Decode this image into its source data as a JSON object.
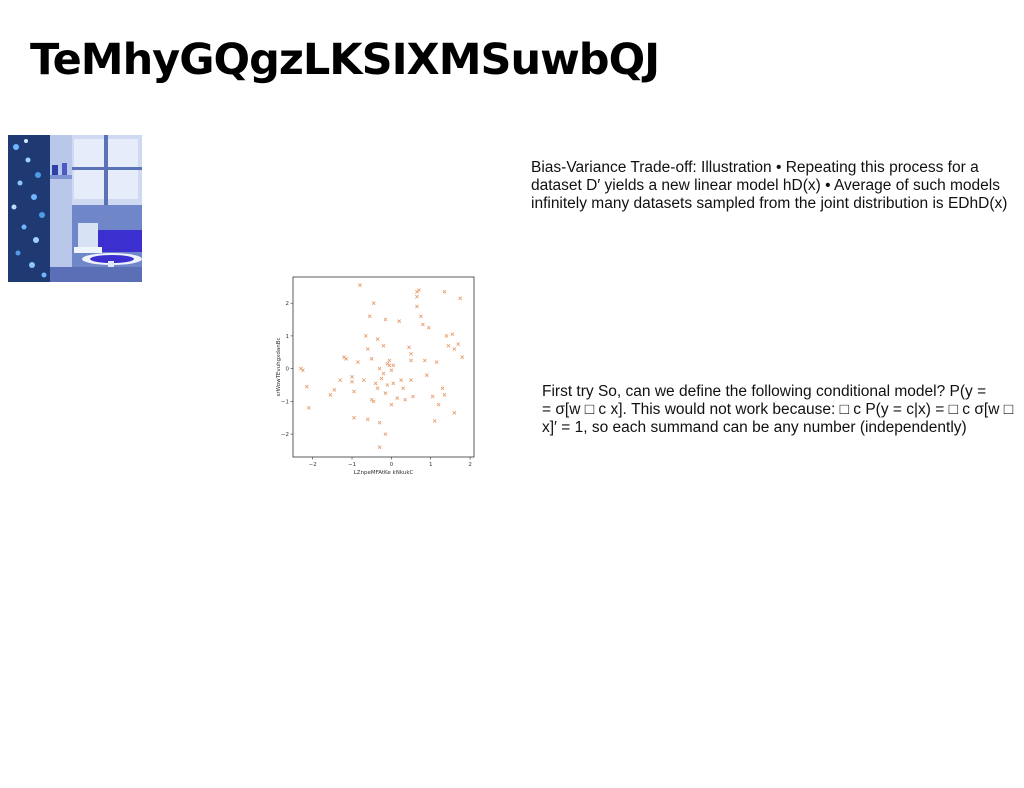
{
  "title": "TeMhyGQgzLKSIXMSuwbQJ",
  "text_block_1": {
    "lines": [
      "Bias-Variance Trade-off: Illustration • Repeating this process for a",
      "dataset D′ yields a new linear model hD(x) • Average of such models",
      "infinitely many datasets sampled from the joint distribution is EDhD(x)"
    ]
  },
  "text_block_2": {
    "lines": [
      "First try So, can we define the following conditional model? P(y =",
      "= σ[w □ c x]. This would not work because: □ c P(y = c|x) = □ c σ[w □",
      "x]′ = 1, so each summand can be any number (independently)"
    ]
  },
  "photo": {
    "icon": "winter-interior-photo",
    "colors": [
      "#2a4a8c",
      "#4f7fd0",
      "#9fb8e8",
      "#d8e2f5",
      "#3b2fd0"
    ]
  },
  "chart_data": {
    "type": "scatter",
    "title": "",
    "xlabel": "LZnpeMFAtKe kNkukC",
    "ylabel": "srWowTEvuhgxdanBc",
    "xlim": [
      -2.5,
      2.1
    ],
    "ylim": [
      -2.7,
      2.8
    ],
    "xticks": [
      -2,
      -1,
      0,
      1,
      2
    ],
    "yticks": [
      -2,
      -1,
      0,
      1,
      2
    ],
    "grid": false,
    "marker": "x",
    "color": "#e59a6a",
    "points": [
      [
        -2.3,
        0.0
      ],
      [
        -2.25,
        -0.05
      ],
      [
        -2.15,
        -0.55
      ],
      [
        -2.1,
        -1.2
      ],
      [
        -1.55,
        -0.8
      ],
      [
        -1.45,
        -0.65
      ],
      [
        -1.3,
        -0.35
      ],
      [
        -1.2,
        0.35
      ],
      [
        -1.15,
        0.3
      ],
      [
        -1.0,
        -0.4
      ],
      [
        -1.0,
        -0.25
      ],
      [
        -0.95,
        -0.7
      ],
      [
        -0.95,
        -1.5
      ],
      [
        -0.85,
        0.2
      ],
      [
        -0.8,
        2.55
      ],
      [
        -0.7,
        -0.35
      ],
      [
        -0.65,
        1.0
      ],
      [
        -0.6,
        0.6
      ],
      [
        -0.6,
        -1.55
      ],
      [
        -0.55,
        1.6
      ],
      [
        -0.5,
        0.3
      ],
      [
        -0.5,
        -0.95
      ],
      [
        -0.45,
        2.0
      ],
      [
        -0.45,
        -1.0
      ],
      [
        -0.4,
        -0.45
      ],
      [
        -0.35,
        0.9
      ],
      [
        -0.35,
        -0.6
      ],
      [
        -0.3,
        0.0
      ],
      [
        -0.3,
        -1.65
      ],
      [
        -0.3,
        -2.4
      ],
      [
        -0.25,
        -0.3
      ],
      [
        -0.2,
        -0.15
      ],
      [
        -0.2,
        0.7
      ],
      [
        -0.15,
        1.5
      ],
      [
        -0.15,
        -0.75
      ],
      [
        -0.15,
        -2.0
      ],
      [
        -0.1,
        0.15
      ],
      [
        -0.1,
        -0.5
      ],
      [
        -0.05,
        0.1
      ],
      [
        -0.05,
        0.25
      ],
      [
        0.0,
        -0.05
      ],
      [
        0.0,
        -1.1
      ],
      [
        0.05,
        0.1
      ],
      [
        0.05,
        -0.45
      ],
      [
        0.15,
        -0.9
      ],
      [
        0.2,
        1.45
      ],
      [
        0.25,
        -0.35
      ],
      [
        0.3,
        -0.6
      ],
      [
        0.35,
        -0.95
      ],
      [
        0.45,
        0.65
      ],
      [
        0.5,
        0.25
      ],
      [
        0.5,
        0.45
      ],
      [
        0.5,
        -0.35
      ],
      [
        0.55,
        -0.85
      ],
      [
        0.65,
        2.35
      ],
      [
        0.65,
        2.2
      ],
      [
        0.65,
        1.9
      ],
      [
        0.7,
        2.4
      ],
      [
        0.75,
        1.6
      ],
      [
        0.8,
        1.35
      ],
      [
        0.85,
        0.25
      ],
      [
        0.9,
        -0.2
      ],
      [
        0.95,
        1.25
      ],
      [
        1.05,
        -0.85
      ],
      [
        1.1,
        -1.6
      ],
      [
        1.15,
        0.2
      ],
      [
        1.2,
        -1.1
      ],
      [
        1.3,
        -0.6
      ],
      [
        1.35,
        2.35
      ],
      [
        1.35,
        -0.8
      ],
      [
        1.4,
        1.0
      ],
      [
        1.45,
        0.7
      ],
      [
        1.55,
        1.05
      ],
      [
        1.6,
        0.6
      ],
      [
        1.6,
        -1.35
      ],
      [
        1.7,
        0.75
      ],
      [
        1.75,
        2.15
      ],
      [
        1.8,
        0.35
      ]
    ]
  }
}
